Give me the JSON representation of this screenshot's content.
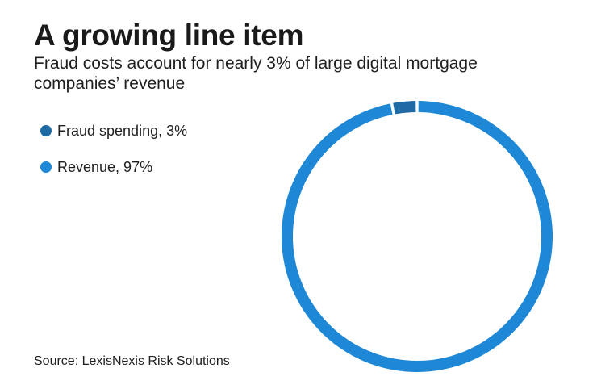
{
  "header": {
    "title": "A growing line item",
    "subtitle": "Fraud costs account for nearly 3% of large digital mortgage companies’ revenue"
  },
  "legend": {
    "items": [
      {
        "label": "Fraud spending, 3%",
        "color": "#1d6aa5"
      },
      {
        "label": "Revenue, 97%",
        "color": "#1e88d6"
      }
    ]
  },
  "footer": {
    "source": "Source: LexisNexis Risk Solutions"
  },
  "chart_data": {
    "type": "pie",
    "variant": "donut",
    "title": "A growing line item",
    "subtitle": "Fraud costs account for nearly 3% of large digital mortgage companies’ revenue",
    "categories": [
      "Fraud spending",
      "Revenue"
    ],
    "values": [
      3,
      97
    ],
    "unit": "%",
    "colors": [
      "#1d6aa5",
      "#1e88d6"
    ],
    "legend_position": "left",
    "start_angle": "top, clockwise ordering ends with fraud slice just left of top"
  }
}
